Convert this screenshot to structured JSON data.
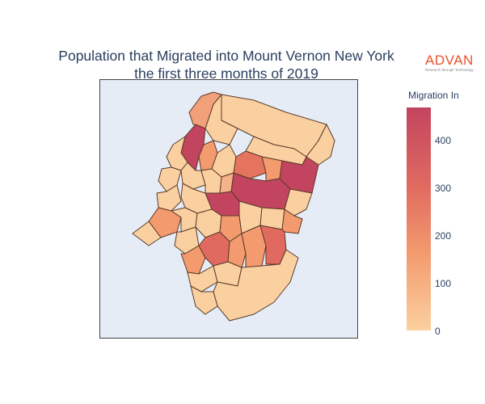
{
  "title": {
    "line1": "Population that Migrated into Mount Vernon New York",
    "line2": "the first three months of 2019"
  },
  "logo": {
    "name": "ADVAN",
    "tagline": "Research through Technology",
    "color": "#e8512d"
  },
  "colorbar": {
    "title": "Migration In",
    "ticks": [
      "400",
      "300",
      "200",
      "100",
      "0"
    ],
    "range": [
      0,
      475
    ],
    "colors": [
      "#fbd0a0",
      "#f39a6e",
      "#e06a60",
      "#c3445f"
    ]
  },
  "map": {
    "background": "#e5ecf6",
    "border_color": "#5a3a2a"
  },
  "chart_data": {
    "type": "choropleth",
    "title": "Population that Migrated into Mount Vernon New York the first three months of 2019",
    "legend_title": "Migration In",
    "value_range": [
      0,
      475
    ]
  }
}
